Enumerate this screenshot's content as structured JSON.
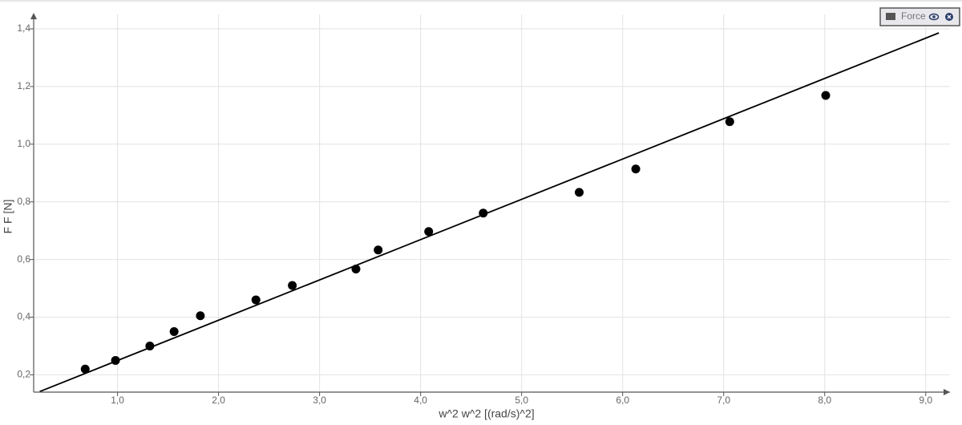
{
  "chart_data": {
    "type": "scatter",
    "x_label": "w^2 w^2 [(rad/s)^2]",
    "y_label": "F F [N]",
    "legend_position": "upper right",
    "grid": true,
    "series": [
      {
        "name": "Force",
        "color": "#000000",
        "x": [
          0.68,
          0.98,
          1.32,
          1.56,
          1.82,
          2.37,
          2.73,
          3.36,
          3.58,
          4.08,
          4.62,
          5.57,
          6.13,
          7.06,
          8.01
        ],
        "values": [
          0.22,
          0.25,
          0.3,
          0.35,
          0.405,
          0.46,
          0.51,
          0.567,
          0.633,
          0.697,
          0.761,
          0.833,
          0.914,
          1.078,
          1.169
        ]
      }
    ],
    "fit": {
      "color": "#000000",
      "x": [
        0.23,
        9.13
      ],
      "values": [
        0.142,
        1.386
      ]
    },
    "xlim": [
      0.17,
      9.24
    ],
    "ylim": [
      0.14,
      1.45
    ],
    "xticks": [
      {
        "value": 1,
        "label": "1,0"
      },
      {
        "value": 2,
        "label": "2,0"
      },
      {
        "value": 3,
        "label": "3,0"
      },
      {
        "value": 4,
        "label": "4,0"
      },
      {
        "value": 5,
        "label": "5,0"
      },
      {
        "value": 6,
        "label": "6,0"
      },
      {
        "value": 7,
        "label": "7,0"
      },
      {
        "value": 8,
        "label": "8,0"
      },
      {
        "value": 9,
        "label": "9,0"
      }
    ],
    "yticks": [
      {
        "value": 0.2,
        "label": "0,2"
      },
      {
        "value": 0.4,
        "label": "0,4"
      },
      {
        "value": 0.6,
        "label": "0,6"
      },
      {
        "value": 0.8,
        "label": "0,8"
      },
      {
        "value": 1.0,
        "label": "1,0"
      },
      {
        "value": 1.2,
        "label": "1,2"
      },
      {
        "value": 1.4,
        "label": "1,4"
      }
    ]
  }
}
